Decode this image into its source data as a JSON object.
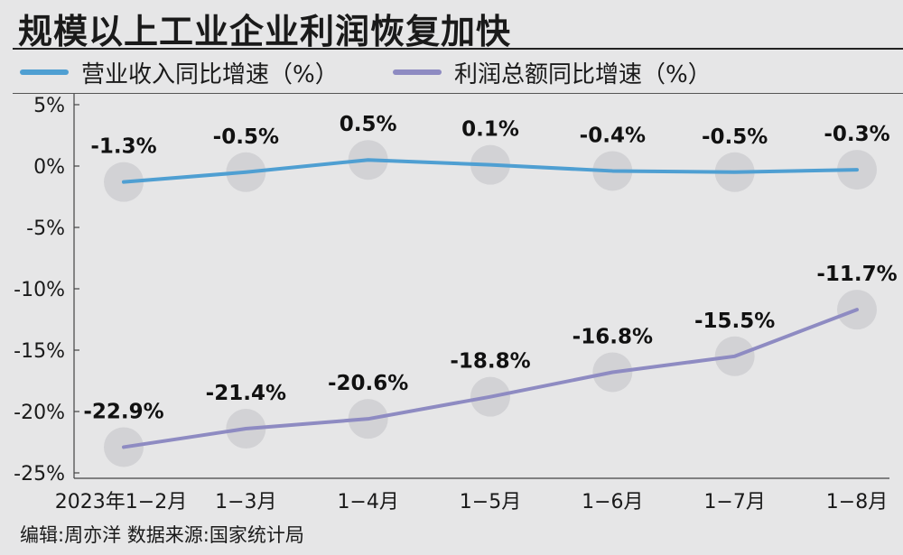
{
  "title": "规模以上工业企业利润恢复加快",
  "footer": "编辑:周亦洋  数据来源:国家统计局",
  "chart_data": {
    "type": "line",
    "categories": [
      "2023年1−2月",
      "1−3月",
      "1−4月",
      "1−5月",
      "1−6月",
      "1−7月",
      "1−8月"
    ],
    "series": [
      {
        "name": "营业收入同比增速（%）",
        "values": [
          -1.3,
          -0.5,
          0.5,
          0.1,
          -0.4,
          -0.5,
          -0.3
        ],
        "labels": [
          "-1.3%",
          "-0.5%",
          "0.5%",
          "0.1%",
          "-0.4%",
          "-0.5%",
          "-0.3%"
        ],
        "color": "#4f9fd2"
      },
      {
        "name": "利润总额同比增速（%）",
        "values": [
          -22.9,
          -21.4,
          -20.6,
          -18.8,
          -16.8,
          -15.5,
          -11.7
        ],
        "labels": [
          "-22.9%",
          "-21.4%",
          "-20.6%",
          "-18.8%",
          "-16.8%",
          "-15.5%",
          "-11.7%"
        ],
        "color": "#8e8bc2"
      }
    ],
    "yticks": [
      5,
      0,
      -5,
      -10,
      -15,
      -20,
      -25
    ],
    "ytick_labels": [
      "5%",
      "0%",
      "-5%",
      "-10%",
      "-15%",
      "-20%",
      "-25%"
    ],
    "ylim": [
      -25,
      5
    ],
    "marker_color": "#d2d2d5",
    "grid": false,
    "legend": "top"
  }
}
